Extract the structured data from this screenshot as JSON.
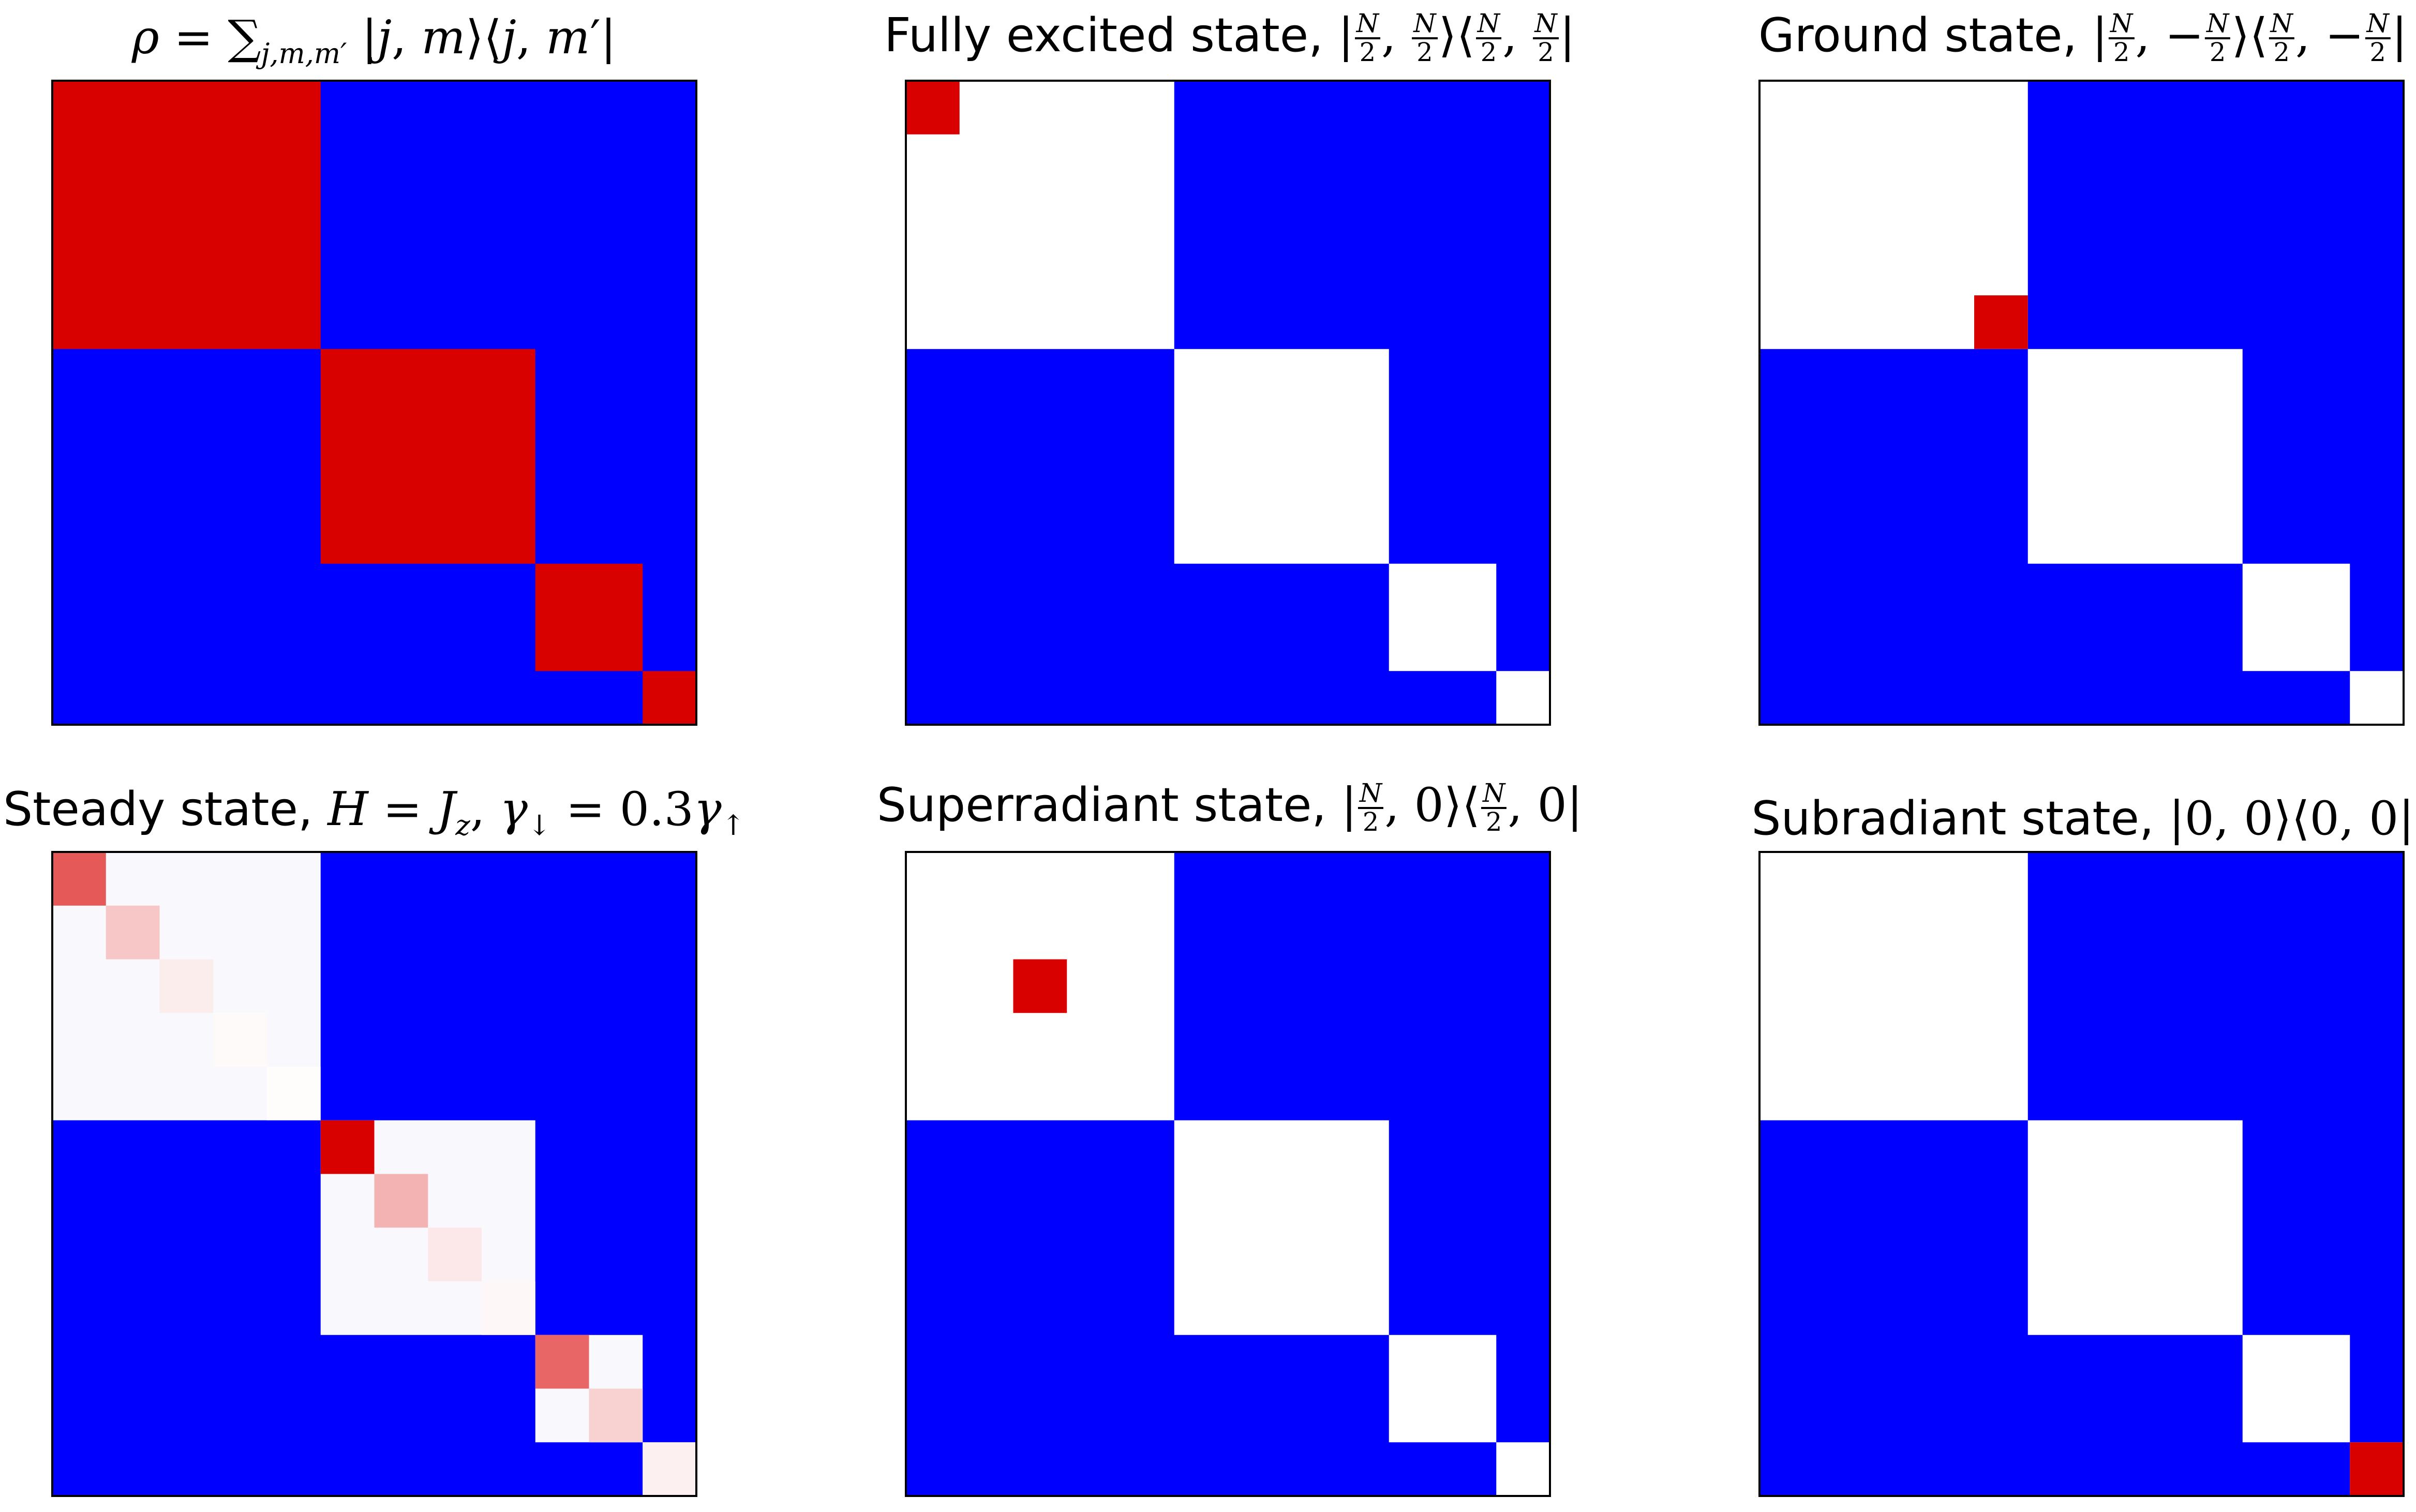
{
  "chart_data": [
    {
      "type": "heatmap",
      "title_text": "ρ = ∑",
      "title_sub": "j,m,m′",
      "title_rest": " |j, m⟩⟨j, m′|",
      "blocks": [
        5,
        4,
        2,
        1
      ],
      "background": "blue",
      "block_fill": "red",
      "highlights": []
    },
    {
      "type": "heatmap",
      "title_text": "Fully excited state, ",
      "title_math": "|N/2, N/2⟩⟨N/2, N/2|",
      "blocks": [
        5,
        4,
        2,
        1
      ],
      "background": "blue",
      "block_fill": "white",
      "highlights": [
        {
          "row": 0,
          "col": 0,
          "value": 1.0
        }
      ]
    },
    {
      "type": "heatmap",
      "title_text": "Ground state, ",
      "title_math": "|N/2, −N/2⟩⟨N/2, −N/2|",
      "blocks": [
        5,
        4,
        2,
        1
      ],
      "background": "blue",
      "block_fill": "white",
      "highlights": [
        {
          "row": 4,
          "col": 4,
          "value": 1.0
        }
      ]
    },
    {
      "type": "heatmap",
      "title_text": "Steady state, ",
      "title_math": "H = Jz, γ↓ = 0.3γ↑",
      "blocks": [
        5,
        4,
        2,
        1
      ],
      "background": "blue",
      "block_fill": "#f8f8fd",
      "highlights": [
        {
          "row": 0,
          "col": 0,
          "value": 0.65
        },
        {
          "row": 1,
          "col": 1,
          "value": 0.22
        },
        {
          "row": 2,
          "col": 2,
          "value": 0.07
        },
        {
          "row": 3,
          "col": 3,
          "value": 0.02
        },
        {
          "row": 4,
          "col": 4,
          "value": 0.01
        },
        {
          "row": 5,
          "col": 5,
          "value": 1.0
        },
        {
          "row": 6,
          "col": 6,
          "value": 0.3
        },
        {
          "row": 7,
          "col": 7,
          "value": 0.09
        },
        {
          "row": 8,
          "col": 8,
          "value": 0.03
        },
        {
          "row": 9,
          "col": 9,
          "value": 0.6
        },
        {
          "row": 10,
          "col": 10,
          "value": 0.18
        },
        {
          "row": 11,
          "col": 11,
          "value": 0.06
        }
      ]
    },
    {
      "type": "heatmap",
      "title_text": "Superradiant state, ",
      "title_math": "|N/2, 0⟩⟨N/2, 0|",
      "blocks": [
        5,
        4,
        2,
        1
      ],
      "background": "blue",
      "block_fill": "white",
      "highlights": [
        {
          "row": 2,
          "col": 2,
          "value": 1.0
        }
      ]
    },
    {
      "type": "heatmap",
      "title_text": "Subradiant state, ",
      "title_math": "|0, 0⟩⟨0, 0|",
      "blocks": [
        5,
        4,
        2,
        1
      ],
      "background": "blue",
      "block_fill": "white",
      "highlights": [
        {
          "row": 11,
          "col": 11,
          "value": 1.0
        }
      ]
    }
  ],
  "colors": {
    "blue": "#0000ff",
    "red": "#d90000",
    "white": "#ffffff",
    "frame": "#000000"
  }
}
